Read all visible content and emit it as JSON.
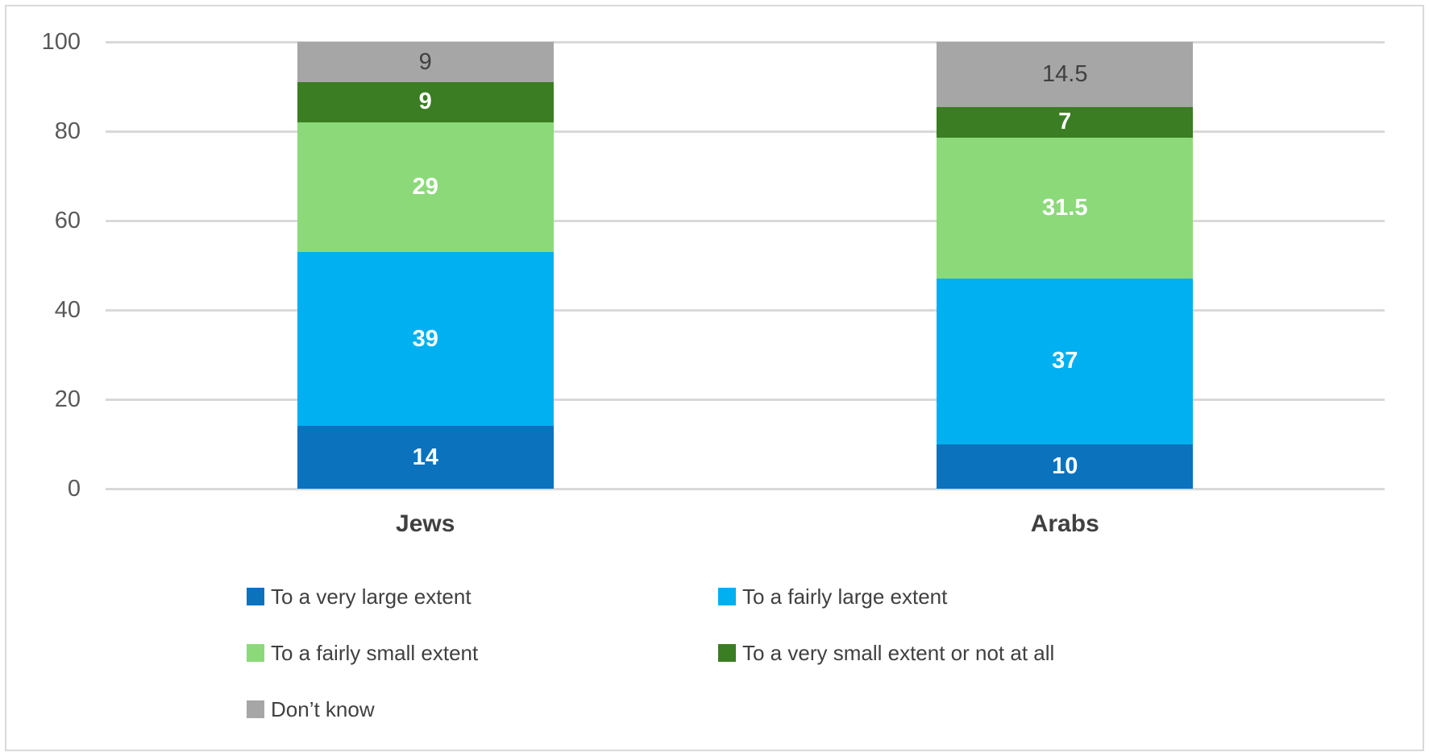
{
  "figure": {
    "background": "#FFFFFF",
    "border_color": "#D9D9D9",
    "gridline_color": "#D9D9D9",
    "axis_text_color": "#595959",
    "text_color": "#404040"
  },
  "chart_data": {
    "type": "bar",
    "subtype": "stacked",
    "orientation": "vertical",
    "title": "",
    "xlabel": "",
    "ylabel": "",
    "categories": [
      "Jews",
      "Arabs"
    ],
    "series": [
      {
        "name": "To a very large extent",
        "color": "#0B72BE",
        "values": [
          14,
          10
        ],
        "label_color": "#FFFFFF",
        "label_bold": true
      },
      {
        "name": "To a fairly large extent",
        "color": "#00B0F0",
        "values": [
          39,
          37
        ],
        "label_color": "#FFFFFF",
        "label_bold": true
      },
      {
        "name": "To a fairly small extent",
        "color": "#8CD97A",
        "values": [
          29,
          31.5
        ],
        "label_color": "#FFFFFF",
        "label_bold": true
      },
      {
        "name": "To a very small extent or not at all",
        "color": "#3A7D22",
        "values": [
          9,
          7
        ],
        "label_color": "#FFFFFF",
        "label_bold": true
      },
      {
        "name": "Don’t know",
        "color": "#A6A6A6",
        "values": [
          9,
          14.5
        ],
        "label_color": "#404040",
        "label_bold": false
      }
    ],
    "ylim": [
      0,
      100
    ],
    "yticks": [
      0,
      20,
      40,
      60,
      80,
      100
    ],
    "grid": "horizontal",
    "legend_position": "bottom",
    "legend_columns": 2
  }
}
